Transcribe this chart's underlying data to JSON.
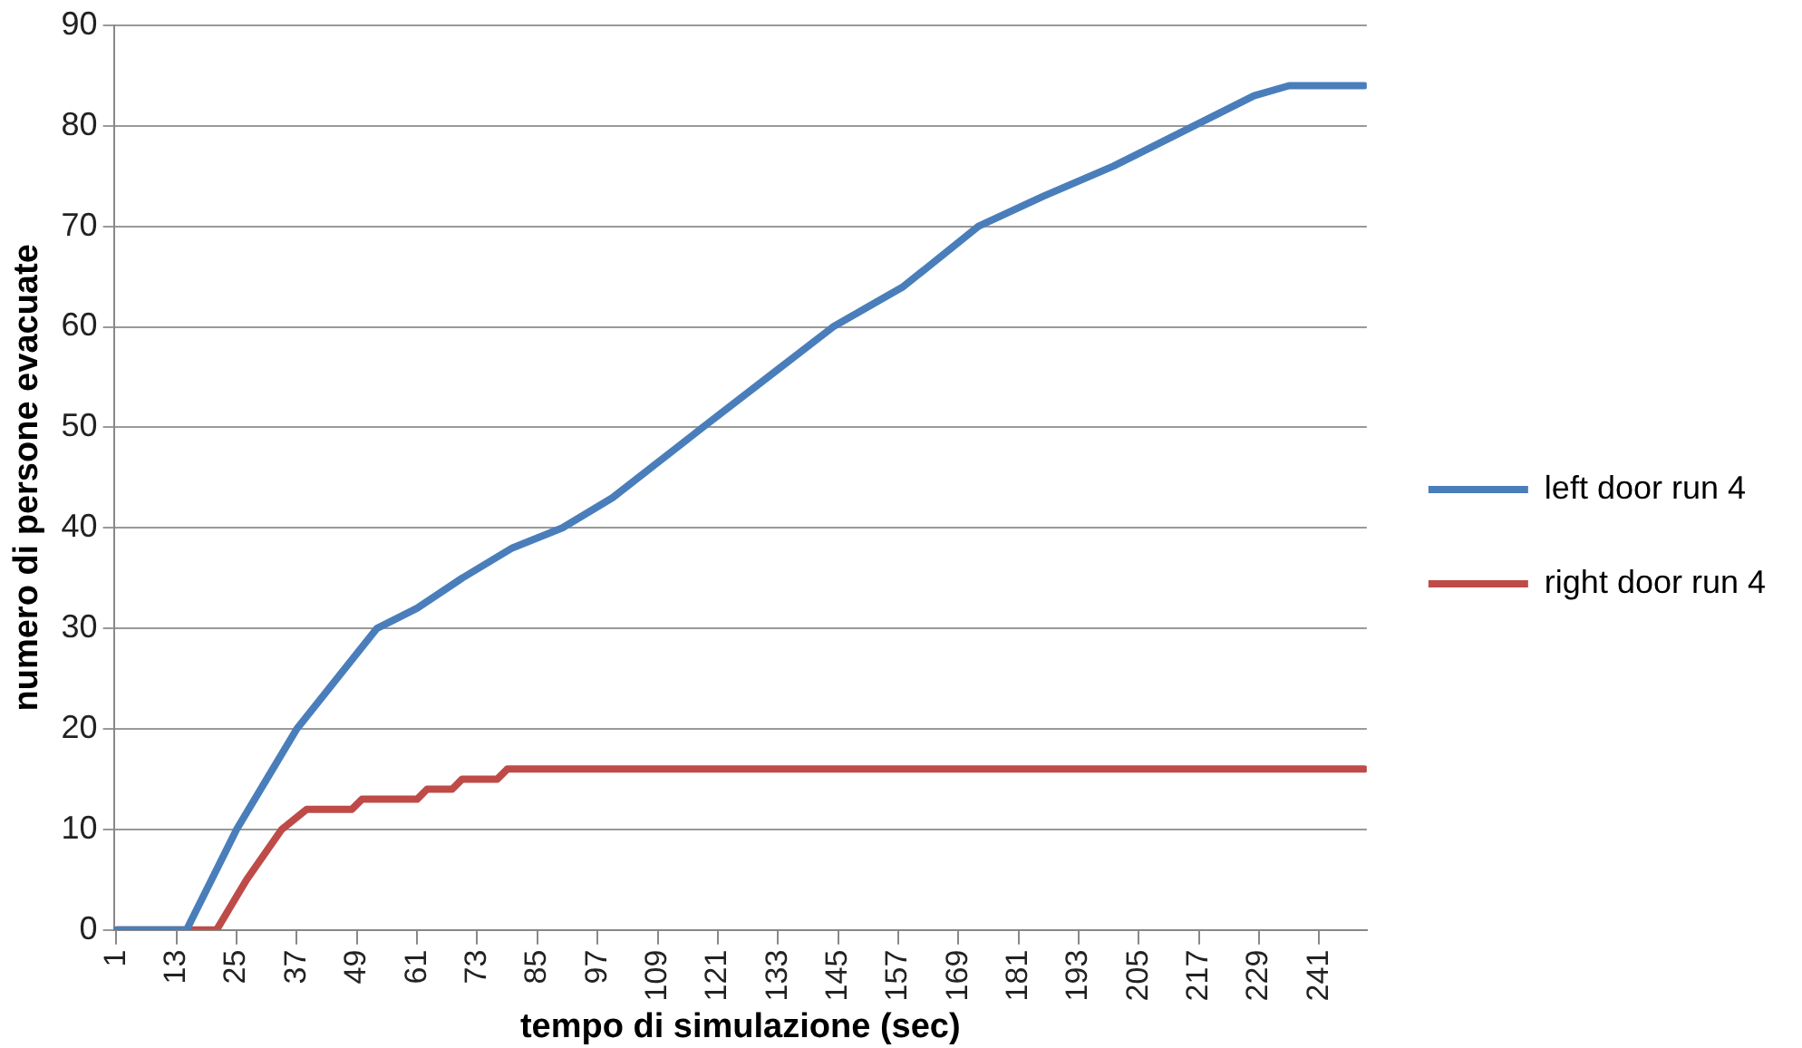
{
  "chart_data": {
    "type": "line",
    "xlabel": "tempo di simulazione (sec)",
    "ylabel": "numero di persone evacuate",
    "xlim": [
      0.5,
      250.5
    ],
    "xticks": [
      1,
      13,
      25,
      37,
      49,
      61,
      73,
      85,
      97,
      109,
      121,
      133,
      145,
      157,
      169,
      181,
      193,
      205,
      217,
      229,
      241
    ],
    "ylim": [
      0,
      90
    ],
    "yticks": [
      0,
      10,
      20,
      30,
      40,
      50,
      60,
      70,
      80,
      90
    ],
    "grid": "y",
    "legend": "right",
    "marker": "none",
    "line_style": "solid",
    "series": [
      {
        "name": "left door run 4",
        "color": "#4a7ebb",
        "x": [
          1,
          15,
          20,
          25,
          31,
          37,
          45,
          53,
          61,
          70,
          80,
          90,
          100,
          118,
          131,
          144,
          158,
          173,
          186,
          200,
          216,
          228,
          235,
          250
        ],
        "values": [
          0,
          0,
          5,
          10,
          15,
          20,
          25,
          30,
          32,
          35,
          38,
          40,
          43,
          50,
          55,
          60,
          64,
          70,
          73,
          76,
          80,
          83,
          84,
          84
        ]
      },
      {
        "name": "right door run 4",
        "color": "#be4b48",
        "x": [
          1,
          21,
          27,
          34,
          39,
          48,
          50,
          61,
          63,
          68,
          70,
          77,
          79,
          250
        ],
        "values": [
          0,
          0,
          5,
          10,
          12,
          12,
          13,
          13,
          14,
          14,
          15,
          15,
          16,
          16
        ]
      }
    ]
  }
}
